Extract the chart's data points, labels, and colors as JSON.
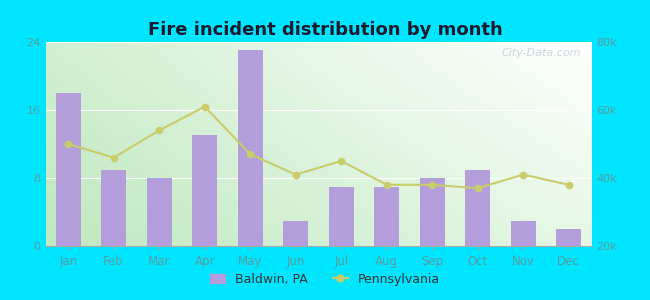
{
  "title": "Fire incident distribution by month",
  "months": [
    "Jan",
    "Feb",
    "Mar",
    "Apr",
    "May",
    "Jun",
    "Jul",
    "Aug",
    "Sep",
    "Oct",
    "Nov",
    "Dec"
  ],
  "baldwin_values": [
    18,
    9,
    8,
    13,
    23,
    3,
    7,
    7,
    8,
    9,
    3,
    2
  ],
  "pennsylvania_values": [
    50000,
    46000,
    54000,
    61000,
    47000,
    41000,
    45000,
    38000,
    38000,
    37000,
    41000,
    38000
  ],
  "bar_color": "#b39ddb",
  "line_color": "#c8cc6a",
  "background_outer": "#00e5ff",
  "background_inner_topleft": "#d4f0d4",
  "background_inner_topright": "#ffffff",
  "background_inner_bottomleft": "#c0e8c0",
  "background_inner_bottomright": "#e8f8e8",
  "left_ylim": [
    0,
    24
  ],
  "right_ylim": [
    20000,
    80000
  ],
  "left_yticks": [
    0,
    8,
    16,
    24
  ],
  "right_yticks": [
    20000,
    40000,
    60000,
    80000
  ],
  "right_yticklabels": [
    "20k",
    "40k",
    "60k",
    "80k"
  ],
  "legend_baldwin": "Baldwin, PA",
  "legend_pennsylvania": "Pennsylvania",
  "watermark": "City-Data.com",
  "tick_label_color": "#5a9ea0",
  "title_color": "#1a1a2e"
}
